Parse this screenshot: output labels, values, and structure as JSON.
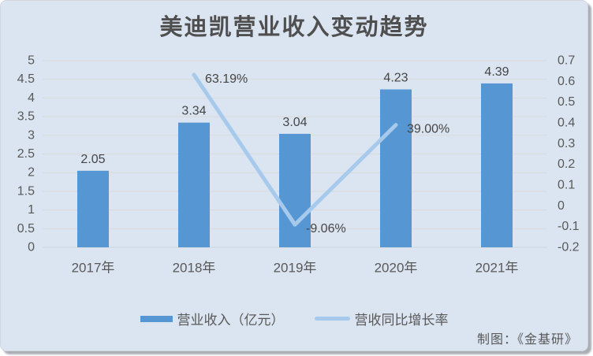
{
  "title": "美迪凯营业收入变动趋势",
  "footer": "制图：《金基研》",
  "legend": [
    {
      "label": "营业收入（亿元）",
      "swatch": "bar-swatch"
    },
    {
      "label": "营收同比增长率",
      "swatch": "line-swatch"
    }
  ],
  "colors": {
    "background": "#dbe5f1",
    "bar": "#5697d3",
    "line": "#a6c9ec",
    "grid": "#d9d9d9",
    "baseline": "#cdd2d8",
    "tick_text": "#595959",
    "label_text": "#454545",
    "title_text": "#4f4f4f"
  },
  "chart_data": {
    "type": "bar",
    "subtype": "combo-bar-line-dual-axis",
    "title": "美迪凯营业收入变动趋势",
    "categories": [
      "2017年",
      "2018年",
      "2019年",
      "2020年",
      "2021年"
    ],
    "series": [
      {
        "name": "营业收入（亿元）",
        "chart": "bar",
        "axis": "left",
        "values": [
          2.05,
          3.34,
          3.04,
          4.23,
          4.39
        ],
        "value_labels": [
          "2.05",
          "3.34",
          "3.04",
          "4.23",
          "4.39"
        ],
        "color": "#5697d3"
      },
      {
        "name": "营收同比增长率",
        "chart": "line",
        "axis": "right",
        "values": [
          null,
          0.6319,
          -0.0906,
          0.39,
          null
        ],
        "value_labels": [
          null,
          "63.19%",
          "-9.06%",
          "39.00%",
          null
        ],
        "color": "#a6c9ec"
      }
    ],
    "left_axis": {
      "min": 0,
      "max": 5,
      "step": 0.5,
      "ticks": [
        "5",
        "4.5",
        "4",
        "3.5",
        "3",
        "2.5",
        "2",
        "1.5",
        "1",
        "0.5",
        "0"
      ]
    },
    "right_axis": {
      "min": -0.2,
      "max": 0.7,
      "step": 0.1,
      "ticks": [
        "0.7",
        "0.6",
        "0.5",
        "0.4",
        "0.3",
        "0.2",
        "0.1",
        "0",
        "-0.1",
        "-0.2"
      ]
    },
    "grid": true,
    "legend_position": "bottom",
    "annotations": [
      "制图：《金基研》"
    ]
  }
}
